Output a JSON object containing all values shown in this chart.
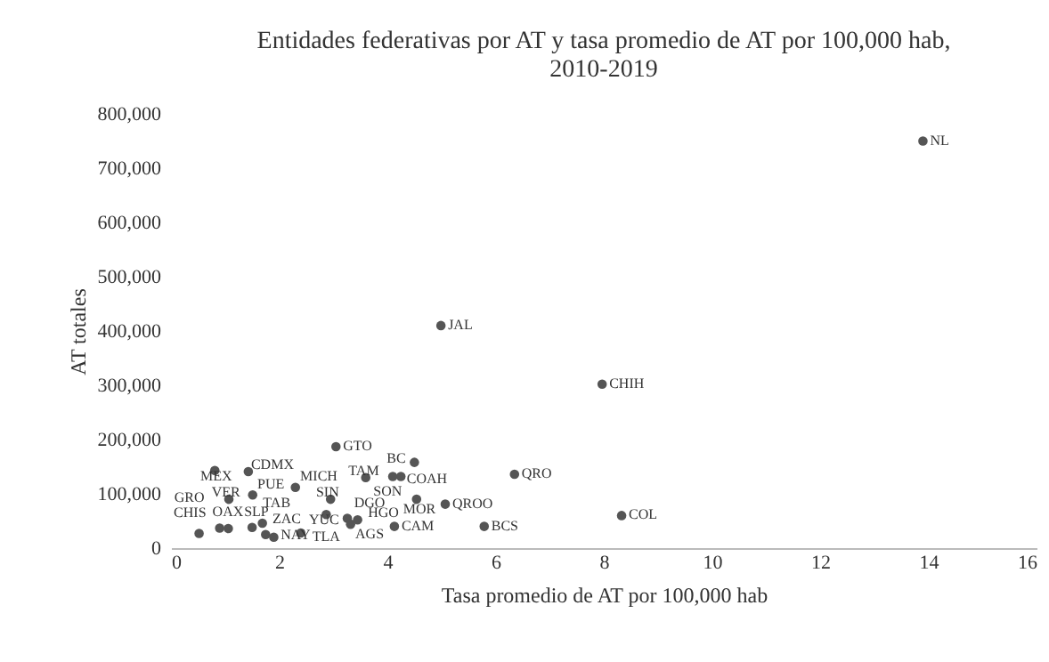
{
  "chart_data": {
    "type": "scatter",
    "title": "Entidades federativas por AT y tasa promedio de AT por 100,000 hab, 2010-2019",
    "xlabel": "Tasa promedio de AT por 100,000 hab",
    "ylabel": "AT totales",
    "xlim": [
      0,
      16
    ],
    "xticks": [
      0,
      2,
      4,
      6,
      8,
      10,
      12,
      14,
      16
    ],
    "ylim": [
      0,
      800000
    ],
    "yticks": [
      0,
      {
        "value": 100000,
        "label": "100,000"
      },
      {
        "value": 200000,
        "label": "200,000"
      },
      {
        "value": 300000,
        "label": "300,000"
      },
      {
        "value": 400000,
        "label": "400,000"
      },
      {
        "value": 500000,
        "label": "500,000"
      },
      {
        "value": 600000,
        "label": "600,000"
      },
      {
        "value": 700000,
        "label": "700,000"
      },
      {
        "value": 800000,
        "label": "800,000"
      }
    ],
    "grid": false,
    "marker": "circle",
    "legend": false,
    "series": [
      {
        "color": "#555555",
        "x": [
          13.9,
          7.97,
          8.33,
          4.99,
          3.05,
          4.5,
          6.35,
          3.6,
          4.1,
          4.25,
          0.81,
          1.43,
          2.3,
          1.07,
          1.51,
          2.95,
          4.54,
          5.07,
          4.13,
          5.79,
          2.87,
          3.26,
          3.32,
          0.52,
          0.9,
          1.06,
          1.5,
          1.69,
          1.75,
          1.9,
          2.4,
          3.45
        ],
        "values": [
          750000,
          302000,
          60000,
          410000,
          187000,
          158000,
          136000,
          130000,
          132000,
          132000,
          143000,
          141000,
          112000,
          90000,
          98000,
          90000,
          90000,
          81000,
          40000,
          40000,
          62000,
          55000,
          44000,
          27000,
          37000,
          36000,
          38000,
          46000,
          25000,
          20000,
          28000,
          52000
        ],
        "value_labels": [
          "NL",
          "CHIH",
          "COL",
          "JAL",
          "GTO",
          "BC",
          "QRO",
          "TAM",
          "SON",
          "COAH",
          "MEX",
          "CDMX",
          "MICH",
          "VER",
          "PUE",
          "SIN",
          "MOR",
          "QROO",
          "CAM",
          "BCS",
          "YUC",
          "DGO",
          "AGS",
          "CHIS",
          "GRO",
          "OAX",
          "TAB",
          "SLP",
          "ZAC",
          "NAY",
          "TLA",
          "HGO"
        ]
      }
    ]
  }
}
